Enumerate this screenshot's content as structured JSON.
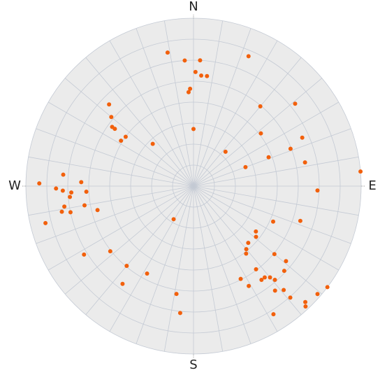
{
  "chart_data": {
    "type": "polar-scatter",
    "theta_ticks": [
      {
        "value": 0,
        "label": "N"
      },
      {
        "value": 90,
        "label": "E"
      },
      {
        "value": 180,
        "label": "S"
      },
      {
        "value": 270,
        "label": "W"
      }
    ],
    "theta_grid": [
      0,
      10,
      20,
      30,
      40,
      50,
      60,
      70,
      80,
      90,
      100,
      110,
      120,
      130,
      140,
      150,
      160,
      170,
      180,
      190,
      200,
      210,
      220,
      230,
      240,
      250,
      260,
      270,
      280,
      290,
      300,
      310,
      320,
      330,
      340,
      350
    ],
    "rlim": [
      0,
      1
    ],
    "rticks": [
      0.125,
      0.25,
      0.375,
      0.5,
      0.625,
      0.75,
      0.875,
      1
    ],
    "color": "#f2600c",
    "theta": [
      349,
      356,
      3,
      1,
      4,
      7,
      358,
      357,
      23,
      40,
      51,
      314,
      310,
      306,
      306,
      306,
      302,
      316,
      0,
      52,
      66,
      69,
      69,
      78,
      43,
      70,
      85,
      92,
      275,
      271,
      272,
      269,
      268,
      267,
      267,
      265,
      261,
      259,
      258,
      260,
      256,
      256,
      211,
      108,
      114,
      126,
      136,
      129,
      140,
      142,
      130,
      232,
      238,
      220,
      129,
      143,
      208,
      142,
      144,
      140,
      139,
      153,
      151,
      133,
      142,
      139,
      216,
      189,
      139,
      127,
      131,
      136,
      137,
      186,
      148
    ],
    "r": [
      0.81,
      0.75,
      0.75,
      0.68,
      0.66,
      0.66,
      0.58,
      0.56,
      0.84,
      0.62,
      0.78,
      0.7,
      0.64,
      0.6,
      0.58,
      0.5,
      0.51,
      0.35,
      0.34,
      0.51,
      0.71,
      0.62,
      0.48,
      0.68,
      0.28,
      0.33,
      1.0,
      0.74,
      0.78,
      0.92,
      0.67,
      0.82,
      0.78,
      0.73,
      0.64,
      0.74,
      0.78,
      0.8,
      0.75,
      0.66,
      0.59,
      0.91,
      0.23,
      0.67,
      0.52,
      0.46,
      0.47,
      0.48,
      0.49,
      0.51,
      0.63,
      0.63,
      0.77,
      0.62,
      0.71,
      0.62,
      0.59,
      0.69,
      0.69,
      0.71,
      0.74,
      0.62,
      0.68,
      0.74,
      0.79,
      0.82,
      0.72,
      0.65,
      0.88,
      1.0,
      0.98,
      0.96,
      0.98,
      0.76,
      0.9
    ]
  }
}
